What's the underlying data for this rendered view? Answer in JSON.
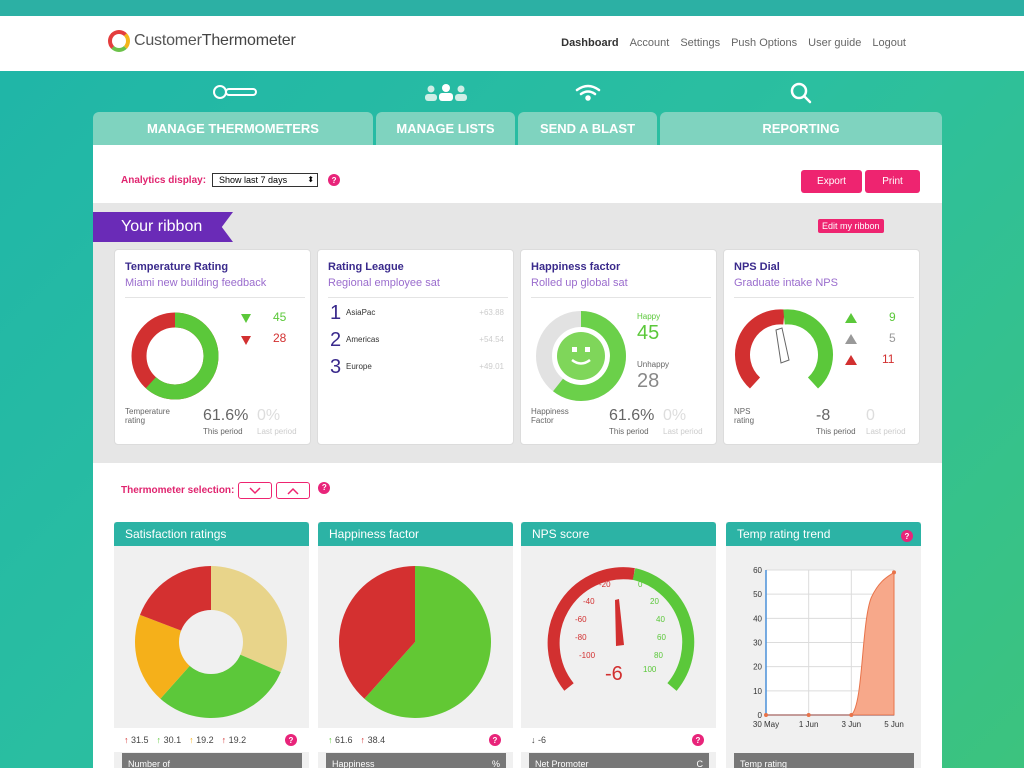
{
  "app": {
    "logo_word1": "Customer",
    "logo_word2": "Thermometer"
  },
  "nav": [
    "Dashboard",
    "Account",
    "Settings",
    "Push Options",
    "User guide",
    "Logout"
  ],
  "tabs": [
    "MANAGE THERMOMETERS",
    "MANAGE LISTS",
    "SEND A BLAST",
    "REPORTING"
  ],
  "analytics": {
    "label": "Analytics display:",
    "selected": "Show last 7 days",
    "export": "Export",
    "print": "Print"
  },
  "ribbon": {
    "title": "Your ribbon",
    "edit": "Edit my ribbon",
    "temp": {
      "title": "Temperature Rating",
      "sub": "Miami new building feedback",
      "down_good": "45",
      "down_bad": "28",
      "label1": "Temperature",
      "label2": "rating",
      "pct": "61.6%",
      "this_period": "This period",
      "last_pct": "0%",
      "last_period": "Last period",
      "green_share": 0.616
    },
    "league": {
      "title": "Rating League",
      "sub": "Regional employee sat",
      "rows": [
        {
          "rank": "1",
          "name": "AsiaPac",
          "val": "+63.88"
        },
        {
          "rank": "2",
          "name": "Americas",
          "val": "+54.54"
        },
        {
          "rank": "3",
          "name": "Europe",
          "val": "+49.01"
        }
      ]
    },
    "happy": {
      "title": "Happiness factor",
      "sub": "Rolled up global sat",
      "happy_label": "Happy",
      "happy": "45",
      "unhappy_label": "Unhappy",
      "unhappy": "28",
      "label1": "Happiness",
      "label2": "Factor",
      "pct": "61.6%",
      "this_period": "This period",
      "last_pct": "0%",
      "last_period": "Last period"
    },
    "nps": {
      "title": "NPS Dial",
      "sub": "Graduate intake NPS",
      "promoters": "9",
      "passives": "5",
      "detractors": "11",
      "label1": "NPS",
      "label2": "rating",
      "value": "-8",
      "this_period": "This period",
      "last": "0",
      "last_period": "Last period"
    }
  },
  "selection": {
    "label": "Thermometer selection:"
  },
  "bottom": {
    "sat": {
      "title": "Satisfaction ratings",
      "stats": [
        "31.5",
        "30.1",
        "19.2",
        "19.2"
      ],
      "bar": "Number of"
    },
    "happy": {
      "title": "Happiness factor",
      "stats": [
        "61.6",
        "38.4"
      ],
      "bar": "Happiness",
      "bar_right": "%"
    },
    "nps": {
      "title": "NPS score",
      "stat": "-6",
      "value": "-6",
      "bar": "Net Promoter",
      "bar_right": "C"
    },
    "trend": {
      "title": "Temp rating trend",
      "bar": "Temp rating"
    }
  },
  "chart_data": [
    {
      "type": "pie",
      "title": "Satisfaction ratings",
      "values": [
        31.5,
        30.1,
        19.2,
        19.2
      ],
      "colors": [
        "#e8d48a",
        "#5cc83a",
        "#f5b01a",
        "#d43030"
      ]
    },
    {
      "type": "pie",
      "title": "Happiness factor",
      "values": [
        61.6,
        38.4
      ],
      "colors": [
        "#62c834",
        "#d43030"
      ]
    },
    {
      "type": "line",
      "title": "Temp rating trend",
      "x": [
        "30 May",
        "1 Jun",
        "3 Jun",
        "5 Jun"
      ],
      "series": [
        {
          "values": [
            0,
            0,
            0,
            59
          ]
        }
      ],
      "ylim": [
        0,
        60
      ],
      "yticks": [
        "0",
        "10",
        "20",
        "30",
        "40",
        "50",
        "60"
      ]
    }
  ]
}
